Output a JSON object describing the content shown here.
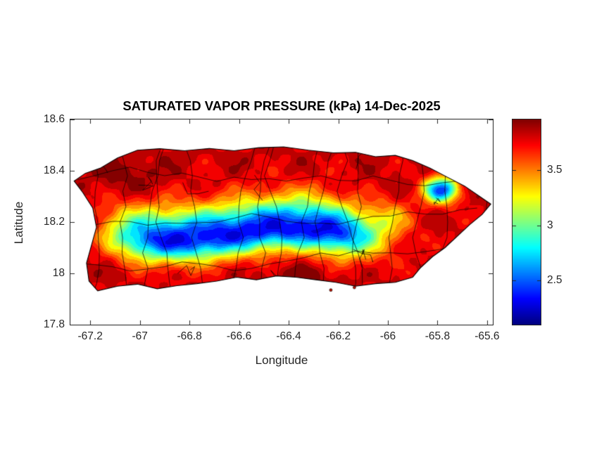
{
  "chart_data": {
    "type": "heatmap",
    "subtype": "filled-contour-geographic-map",
    "region": "Puerto Rico with municipality boundaries",
    "title": "SATURATED VAPOR PRESSURE (kPa) 14-Dec-2025",
    "xlabel": "Longitude",
    "ylabel": "Latitude",
    "grid": false,
    "xlim": [
      -67.28,
      -65.577
    ],
    "ylim": [
      17.8,
      18.6
    ],
    "xticks": [
      -67.2,
      -67,
      -66.8,
      -66.6,
      -66.4,
      -66.2,
      -66,
      -65.8,
      -65.6
    ],
    "xtick_labels": [
      "-67.2",
      "-67",
      "-66.8",
      "-66.6",
      "-66.4",
      "-66.2",
      "-66",
      "-65.8",
      "-65.6"
    ],
    "yticks": [
      17.8,
      18,
      18.2,
      18.4,
      18.6
    ],
    "ytick_labels": [
      "17.8",
      "18",
      "18.2",
      "18.4",
      "18.6"
    ],
    "colorbar": {
      "position": "right",
      "colormap": "jet",
      "vmin": 2.1,
      "vmax": 3.96,
      "ticks": [
        2.5,
        3,
        3.5
      ],
      "tick_labels": [
        "2.5",
        "3",
        "3.5"
      ]
    },
    "value_units": "kPa",
    "value_range_on_map": [
      2.2,
      3.95
    ],
    "contour_level_step": 0.1,
    "colors": {
      "text": "#262626",
      "title": "#000000",
      "boundary_lines": "#000000",
      "coastline": "#000000"
    },
    "outline": [
      [
        -67.16,
        18.41
      ],
      [
        -67.09,
        18.45
      ],
      [
        -67.01,
        18.48
      ],
      [
        -66.92,
        18.486
      ],
      [
        -66.82,
        18.478
      ],
      [
        -66.72,
        18.487
      ],
      [
        -66.62,
        18.478
      ],
      [
        -66.52,
        18.49
      ],
      [
        -66.42,
        18.493
      ],
      [
        -66.32,
        18.48
      ],
      [
        -66.22,
        18.47
      ],
      [
        -66.13,
        18.472
      ],
      [
        -66.05,
        18.455
      ],
      [
        -65.97,
        18.46
      ],
      [
        -65.9,
        18.44
      ],
      [
        -65.83,
        18.41
      ],
      [
        -65.76,
        18.375
      ],
      [
        -65.69,
        18.34
      ],
      [
        -65.63,
        18.3
      ],
      [
        -65.585,
        18.27
      ],
      [
        -65.62,
        18.23
      ],
      [
        -65.67,
        18.19
      ],
      [
        -65.72,
        18.145
      ],
      [
        -65.77,
        18.1
      ],
      [
        -65.82,
        18.065
      ],
      [
        -65.87,
        18.02
      ],
      [
        -65.9,
        17.985
      ],
      [
        -65.97,
        17.965
      ],
      [
        -66.05,
        17.96
      ],
      [
        -66.13,
        17.95
      ],
      [
        -66.21,
        17.965
      ],
      [
        -66.29,
        17.975
      ],
      [
        -66.37,
        17.985
      ],
      [
        -66.45,
        17.99
      ],
      [
        -66.53,
        17.975
      ],
      [
        -66.61,
        17.985
      ],
      [
        -66.69,
        17.97
      ],
      [
        -66.77,
        17.96
      ],
      [
        -66.85,
        17.952
      ],
      [
        -66.93,
        17.94
      ],
      [
        -67.01,
        17.958
      ],
      [
        -67.09,
        17.95
      ],
      [
        -67.17,
        17.932
      ],
      [
        -67.205,
        17.97
      ],
      [
        -67.215,
        18.04
      ],
      [
        -67.195,
        18.11
      ],
      [
        -67.175,
        18.18
      ],
      [
        -67.19,
        18.255
      ],
      [
        -67.23,
        18.315
      ],
      [
        -67.265,
        18.36
      ],
      [
        -67.22,
        18.39
      ]
    ],
    "field_model": {
      "coastal_base": 3.82,
      "ridge_lat": 18.155,
      "ridge_depth": 1.5,
      "ridge_sigma_north": 0.115,
      "ridge_sigma_south": 0.085,
      "ridge_lon_center": -66.62,
      "ridge_lon_halfwidth": 0.5,
      "ridge_meander_amp": 0.025,
      "ridge_meander_freq": 6.0,
      "texture_amp1": 0.1,
      "texture_amp2": 0.06,
      "depressions": [
        {
          "lon": -66.12,
          "lat": 18.14,
          "depth": 0.55,
          "sx": 0.16,
          "sy": 0.09
        },
        {
          "lon": -65.785,
          "lat": 18.325,
          "depth": 1.35,
          "sx": 0.07,
          "sy": 0.05
        },
        {
          "lon": -66.0,
          "lat": 18.22,
          "depth": 0.35,
          "sx": 0.1,
          "sy": 0.07
        }
      ],
      "hotspots": [
        {
          "lon": -67.05,
          "lat": 18.38,
          "amp": 0.15,
          "sx": 0.12,
          "sy": 0.08
        },
        {
          "lon": -66.35,
          "lat": 17.99,
          "amp": 0.12,
          "sx": 0.15,
          "sy": 0.06
        }
      ],
      "clamp": [
        2.12,
        3.95
      ]
    },
    "boundaries": {
      "seed": 7,
      "vertical_lines": 16,
      "horizontal_lines": 3,
      "extra_segments": 14
    },
    "islets": [
      [
        -66.23,
        17.935
      ],
      [
        -66.135,
        17.945
      ]
    ]
  }
}
